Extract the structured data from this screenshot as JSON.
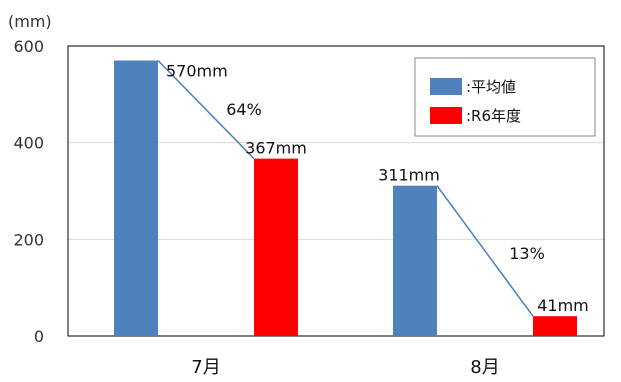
{
  "chart_data": {
    "type": "bar",
    "unit_label": "(mm)",
    "categories": [
      "7月",
      "8月"
    ],
    "series": [
      {
        "name": ":平均値",
        "values": [
          570,
          311
        ],
        "data_labels": [
          "570mm",
          "311mm"
        ],
        "color": "#4f81bd"
      },
      {
        "name": ":R6年度",
        "values": [
          367,
          41
        ],
        "data_labels": [
          "367mm",
          "41mm"
        ],
        "color": "#ff0000"
      }
    ],
    "ratio_labels": [
      "64%",
      "13%"
    ],
    "ylim": [
      0,
      600
    ],
    "y_ticks": [
      "0",
      "200",
      "400",
      "600"
    ],
    "grid": true,
    "legend_position": "top-right",
    "connector_color": "#4a7ebb"
  }
}
